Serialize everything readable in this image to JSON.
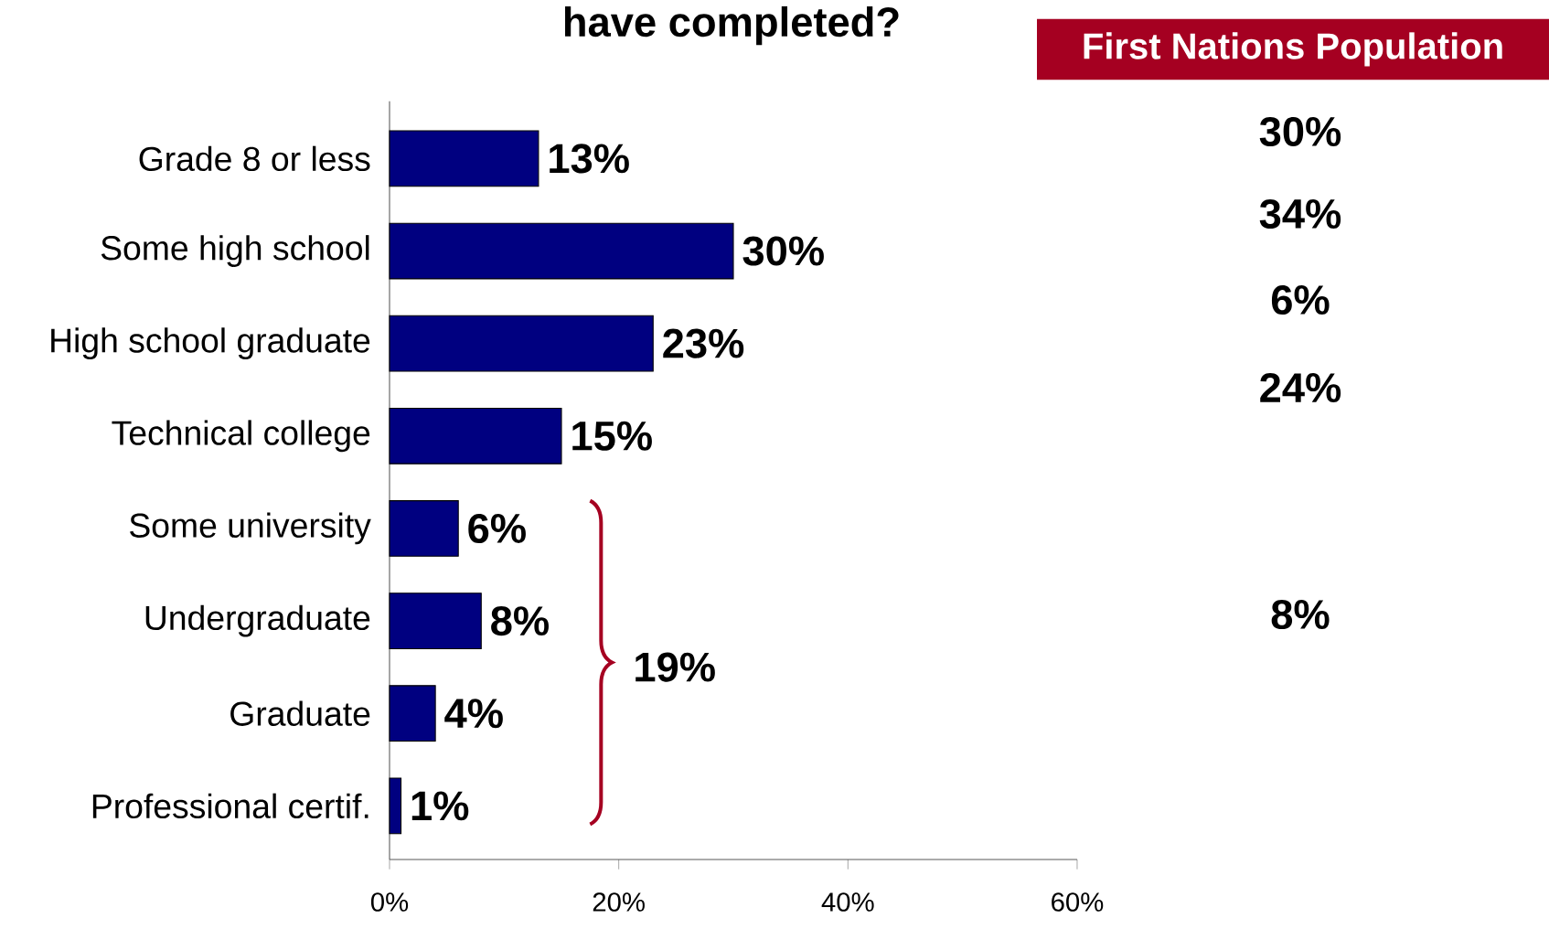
{
  "chart_data": {
    "type": "bar",
    "orientation": "horizontal",
    "title": "have completed?",
    "categories": [
      "Grade 8 or less",
      "Some high school",
      "High school graduate",
      "Technical college",
      "Some university",
      "Undergraduate",
      "Graduate",
      "Professional certif."
    ],
    "values": [
      13,
      30,
      23,
      15,
      6,
      8,
      4,
      1
    ],
    "value_labels": [
      "13%",
      "30%",
      "23%",
      "15%",
      "6%",
      "8%",
      "4%",
      "1%"
    ],
    "color": "#000080",
    "xlim": [
      0,
      60
    ],
    "xticks": [
      {
        "value": 0,
        "label": "0%"
      },
      {
        "value": 20,
        "label": "20%"
      },
      {
        "value": 40,
        "label": "40%"
      },
      {
        "value": 60,
        "label": "60%"
      }
    ],
    "grid": false,
    "annotations": [
      "First Nations Population",
      "30%",
      "34%",
      "6%",
      "24%",
      "8%",
      "19%"
    ]
  }
}
